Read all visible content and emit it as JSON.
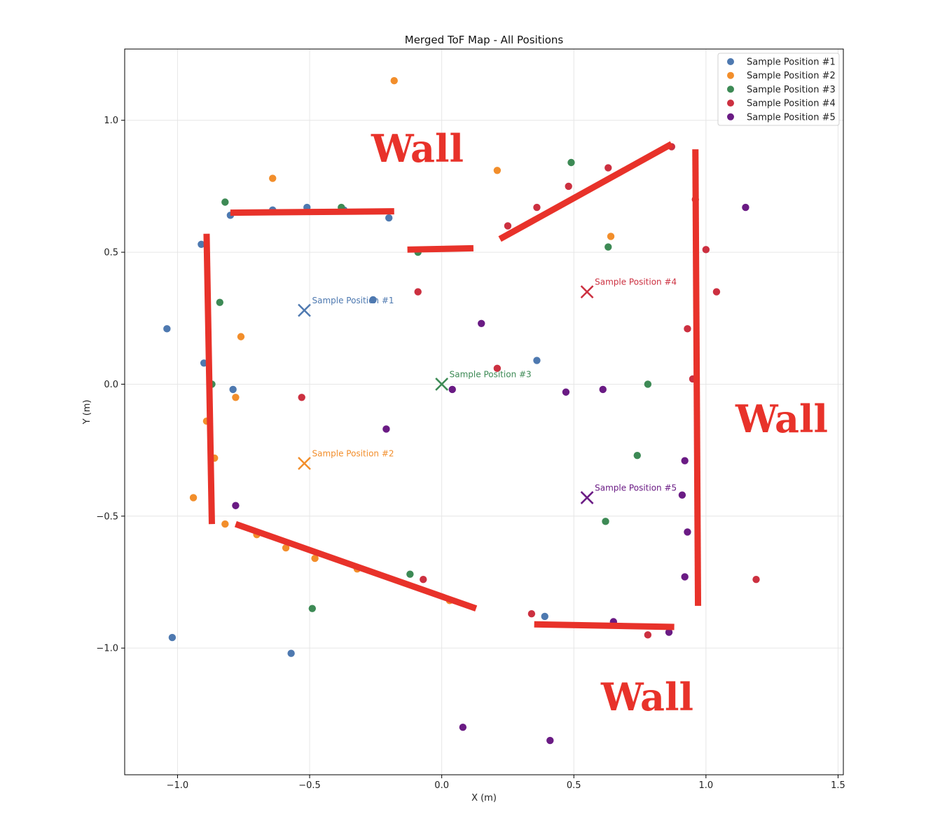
{
  "chart_data": {
    "type": "scatter",
    "title": "Merged ToF Map - All Positions",
    "xlabel": "X (m)",
    "ylabel": "Y (m)",
    "xlim": [
      -1.2,
      1.52
    ],
    "ylim": [
      -1.48,
      1.27
    ],
    "xticks": [
      -1.0,
      -0.5,
      0.0,
      0.5,
      1.0,
      1.5
    ],
    "xtick_labels": [
      "−1.0",
      "−0.5",
      "0.0",
      "0.5",
      "1.0",
      "1.5"
    ],
    "yticks": [
      -1.0,
      -0.5,
      0.0,
      0.5,
      1.0
    ],
    "ytick_labels": [
      "−1.0",
      "−0.5",
      "0.0",
      "0.5",
      "1.0"
    ],
    "grid": true,
    "legend_position": "top-right",
    "series": [
      {
        "name": "Sample Position #1",
        "color": "#4e79b0",
        "points": [
          [
            -1.04,
            0.21
          ],
          [
            -0.91,
            0.53
          ],
          [
            -0.9,
            0.08
          ],
          [
            -0.8,
            0.64
          ],
          [
            -0.79,
            -0.02
          ],
          [
            -0.64,
            0.66
          ],
          [
            -0.51,
            0.67
          ],
          [
            -0.37,
            0.66
          ],
          [
            -0.26,
            0.32
          ],
          [
            -0.2,
            0.63
          ],
          [
            0.36,
            0.09
          ],
          [
            0.39,
            -0.88
          ],
          [
            -1.02,
            -0.96
          ],
          [
            -0.57,
            -1.02
          ]
        ],
        "marker_pos": [
          -0.52,
          0.28
        ],
        "marker_label": "Sample Position #1"
      },
      {
        "name": "Sample Position #2",
        "color": "#f28e2b",
        "points": [
          [
            -0.18,
            1.15
          ],
          [
            -0.64,
            0.78
          ],
          [
            0.21,
            0.81
          ],
          [
            -0.76,
            0.18
          ],
          [
            -0.78,
            -0.05
          ],
          [
            -0.89,
            -0.14
          ],
          [
            -0.86,
            -0.28
          ],
          [
            -0.94,
            -0.43
          ],
          [
            -0.82,
            -0.53
          ],
          [
            -0.7,
            -0.57
          ],
          [
            -0.59,
            -0.62
          ],
          [
            -0.48,
            -0.66
          ],
          [
            -0.32,
            -0.7
          ],
          [
            0.64,
            0.56
          ],
          [
            0.03,
            -0.82
          ]
        ],
        "marker_pos": [
          -0.52,
          -0.3
        ],
        "marker_label": "Sample Position #2"
      },
      {
        "name": "Sample Position #3",
        "color": "#3d8a55",
        "points": [
          [
            -0.82,
            0.69
          ],
          [
            -0.38,
            0.67
          ],
          [
            -0.09,
            0.5
          ],
          [
            0.49,
            0.84
          ],
          [
            -0.84,
            0.31
          ],
          [
            -0.87,
            0.0
          ],
          [
            0.63,
            0.52
          ],
          [
            0.78,
            0.0
          ],
          [
            0.74,
            -0.27
          ],
          [
            0.62,
            -0.52
          ],
          [
            -0.12,
            -0.72
          ],
          [
            -0.49,
            -0.85
          ]
        ],
        "marker_pos": [
          0.0,
          0.0
        ],
        "marker_label": "Sample Position #3"
      },
      {
        "name": "Sample Position #4",
        "color": "#cc3040",
        "points": [
          [
            0.87,
            0.9
          ],
          [
            0.63,
            0.82
          ],
          [
            0.48,
            0.75
          ],
          [
            0.36,
            0.67
          ],
          [
            0.25,
            0.6
          ],
          [
            0.96,
            0.7
          ],
          [
            1.0,
            0.51
          ],
          [
            1.04,
            0.35
          ],
          [
            0.93,
            0.21
          ],
          [
            0.95,
            0.02
          ],
          [
            -0.09,
            0.35
          ],
          [
            0.21,
            0.06
          ],
          [
            -0.53,
            -0.05
          ],
          [
            -0.07,
            -0.74
          ],
          [
            0.34,
            -0.87
          ],
          [
            0.78,
            -0.95
          ],
          [
            1.19,
            -0.74
          ]
        ],
        "marker_pos": [
          0.55,
          0.35
        ],
        "marker_label": "Sample Position #4"
      },
      {
        "name": "Sample Position #5",
        "color": "#6a1b84",
        "points": [
          [
            1.15,
            0.67
          ],
          [
            0.15,
            0.23
          ],
          [
            0.04,
            -0.02
          ],
          [
            0.47,
            -0.03
          ],
          [
            0.61,
            -0.02
          ],
          [
            -0.21,
            -0.17
          ],
          [
            -0.78,
            -0.46
          ],
          [
            0.92,
            -0.29
          ],
          [
            0.91,
            -0.42
          ],
          [
            0.93,
            -0.56
          ],
          [
            0.92,
            -0.73
          ],
          [
            0.65,
            -0.9
          ],
          [
            0.86,
            -0.94
          ],
          [
            0.08,
            -1.3
          ],
          [
            0.41,
            -1.35
          ]
        ],
        "marker_pos": [
          0.55,
          -0.43
        ],
        "marker_label": "Sample Position #5"
      }
    ],
    "annotations": [
      {
        "text": "Wall"
      },
      {
        "text": "Wall"
      },
      {
        "text": "Wall"
      }
    ],
    "wall_color": "#e8322a",
    "walls": [
      [
        [
          -0.89,
          0.57
        ],
        [
          -0.87,
          -0.53
        ]
      ],
      [
        [
          -0.8,
          0.65
        ],
        [
          -0.18,
          0.655
        ]
      ],
      [
        [
          -0.13,
          0.51
        ],
        [
          0.12,
          0.515
        ]
      ],
      [
        [
          0.22,
          0.55
        ],
        [
          0.87,
          0.91
        ]
      ],
      [
        [
          0.96,
          0.89
        ],
        [
          0.97,
          -0.84
        ]
      ],
      [
        [
          -0.78,
          -0.53
        ],
        [
          0.13,
          -0.85
        ]
      ],
      [
        [
          0.35,
          -0.91
        ],
        [
          0.88,
          -0.92
        ]
      ]
    ]
  }
}
